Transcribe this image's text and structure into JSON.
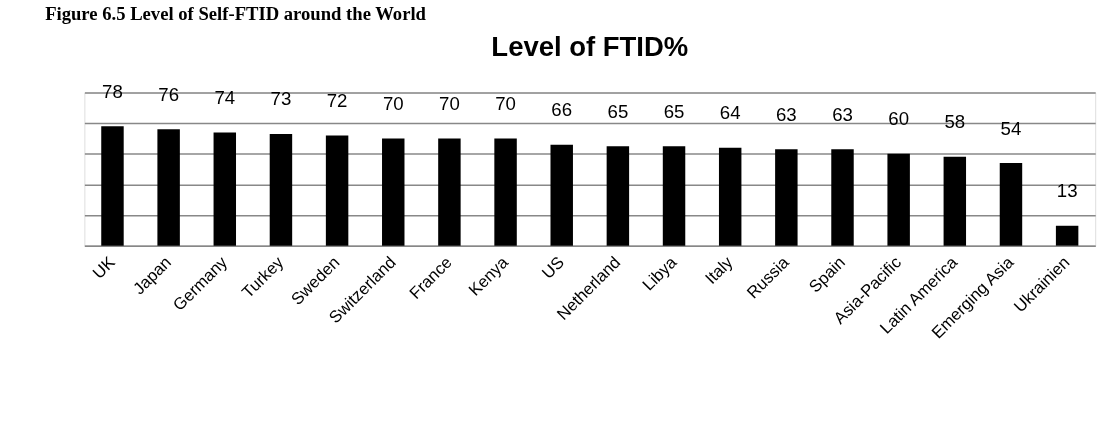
{
  "chart_data": {
    "type": "bar",
    "title": "Level of FTID%",
    "annotations": [
      "Figure 6.5 Level of Self-FTID around the World"
    ],
    "categories": [
      "UK",
      "Japan",
      "Germany",
      "Turkey",
      "Sweden",
      "Switzerland",
      "France",
      "Kenya",
      "US",
      "Netherland",
      "Libya",
      "Italy",
      "Russia",
      "Spain",
      "Asia-Pacific",
      "Latin America",
      "Emerging Asia",
      "Ukrainien"
    ],
    "values": [
      78,
      76,
      74,
      73,
      72,
      70,
      70,
      70,
      66,
      65,
      65,
      64,
      63,
      63,
      60,
      58,
      54,
      13
    ],
    "color": "#000000",
    "ylim": [
      0,
      100
    ],
    "yticks": [
      {
        "value": 0,
        "label": null
      },
      {
        "value": 20,
        "label": null
      },
      {
        "value": 40,
        "label": null
      },
      {
        "value": 60,
        "label": null
      },
      {
        "value": 80,
        "label": null
      },
      {
        "value": 100,
        "label": null
      }
    ],
    "tick_labels": "x",
    "grid": "y",
    "data_labels": true
  }
}
